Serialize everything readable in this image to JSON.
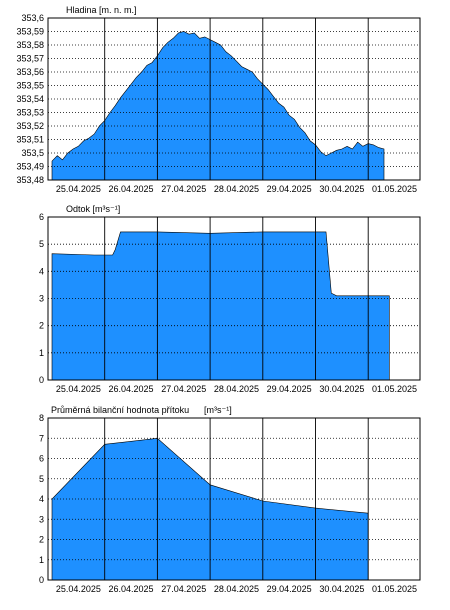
{
  "chart_data": [
    {
      "type": "area",
      "title": "Hladina [m. n. m.]",
      "ylim": [
        353.48,
        353.6
      ],
      "yticks": [
        "353,48",
        "353,49",
        "353,5",
        "353,51",
        "353,52",
        "353,53",
        "353,54",
        "353,55",
        "353,56",
        "353,57",
        "353,58",
        "353,59",
        "353,6"
      ],
      "xlim": [
        0,
        7
      ],
      "xticks": [
        "25.04.2025",
        "26.04.2025",
        "27.04.2025",
        "28.04.2025",
        "29.04.2025",
        "30.04.2025",
        "01.05.2025"
      ],
      "grid": true,
      "fill_color": "#1e90ff",
      "x": [
        0.0,
        0.1,
        0.2,
        0.3,
        0.4,
        0.5,
        0.6,
        0.7,
        0.8,
        0.9,
        1.0,
        1.1,
        1.2,
        1.3,
        1.4,
        1.5,
        1.6,
        1.7,
        1.8,
        1.9,
        2.0,
        2.1,
        2.2,
        2.3,
        2.4,
        2.5,
        2.6,
        2.7,
        2.8,
        2.9,
        3.0,
        3.1,
        3.2,
        3.3,
        3.4,
        3.5,
        3.6,
        3.7,
        3.8,
        3.9,
        4.0,
        4.1,
        4.2,
        4.3,
        4.4,
        4.5,
        4.6,
        4.7,
        4.8,
        4.9,
        5.0,
        5.1,
        5.2,
        5.3,
        5.4,
        5.5,
        5.6,
        5.7,
        5.8,
        5.9,
        6.0,
        6.1,
        6.2,
        6.3
      ],
      "values": [
        353.494,
        353.498,
        353.495,
        353.5,
        353.503,
        353.505,
        353.509,
        353.511,
        353.514,
        353.52,
        353.524,
        353.53,
        353.535,
        353.541,
        353.546,
        353.551,
        353.556,
        353.56,
        353.565,
        353.567,
        353.572,
        353.578,
        353.582,
        353.585,
        353.589,
        353.59,
        353.588,
        353.589,
        353.585,
        353.586,
        353.584,
        353.582,
        353.58,
        353.575,
        353.572,
        353.568,
        353.564,
        353.562,
        353.56,
        353.555,
        353.551,
        353.547,
        353.542,
        353.537,
        353.534,
        353.528,
        353.525,
        353.519,
        353.515,
        353.509,
        353.506,
        353.501,
        353.498,
        353.5,
        353.502,
        353.503,
        353.505,
        353.503,
        353.508,
        353.505,
        353.507,
        353.506,
        353.504,
        353.503
      ]
    },
    {
      "type": "area",
      "title": "Odtok [m³s⁻¹]",
      "ylim": [
        0,
        6
      ],
      "yticks": [
        "0",
        "1",
        "2",
        "3",
        "4",
        "5",
        "6"
      ],
      "xlim": [
        0,
        7
      ],
      "xticks": [
        "25.04.2025",
        "26.04.2025",
        "27.04.2025",
        "28.04.2025",
        "29.04.2025",
        "30.04.2025",
        "01.05.2025"
      ],
      "grid": true,
      "fill_color": "#1e90ff",
      "x": [
        0.0,
        0.8,
        1.15,
        1.2,
        1.3,
        2.0,
        3.0,
        4.0,
        4.3,
        5.0,
        5.2,
        5.3,
        5.4,
        6.4
      ],
      "values": [
        4.65,
        4.6,
        4.6,
        4.8,
        5.45,
        5.45,
        5.4,
        5.45,
        5.45,
        5.45,
        5.45,
        3.2,
        3.1,
        3.1
      ]
    },
    {
      "type": "area",
      "title": "Průměrná bilanční hodnota přítoku",
      "title_unit": "[m³s⁻¹]",
      "ylim": [
        0,
        8
      ],
      "yticks": [
        "0",
        "1",
        "2",
        "3",
        "4",
        "5",
        "6",
        "7",
        "8"
      ],
      "xlim": [
        0,
        7
      ],
      "xticks": [
        "25.04.2025",
        "26.04.2025",
        "27.04.2025",
        "28.04.2025",
        "29.04.2025",
        "30.04.2025",
        "01.05.2025"
      ],
      "grid": true,
      "fill_color": "#1e90ff",
      "x": [
        0.0,
        1.0,
        2.0,
        3.0,
        4.0,
        5.0,
        6.0
      ],
      "values": [
        4.0,
        6.7,
        7.0,
        4.7,
        3.9,
        3.55,
        3.3
      ]
    }
  ]
}
